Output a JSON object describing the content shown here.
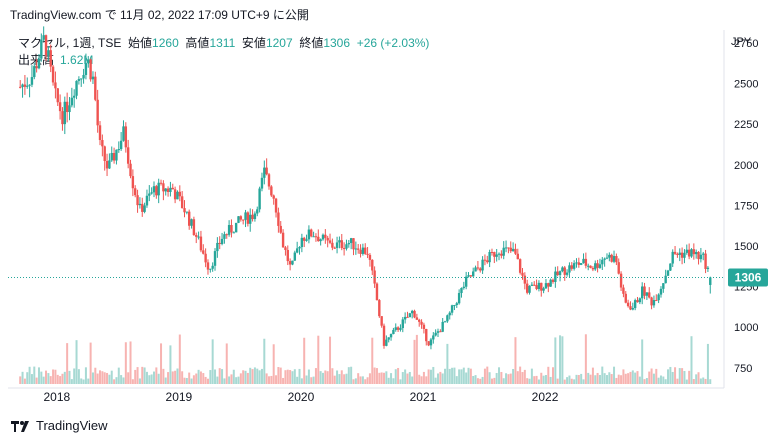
{
  "header": {
    "site": "TradingView.com",
    "byline": " で 11月 02, 2022 17:09 UTC+9 に公開"
  },
  "legend": {
    "symbol": "マクセル, 1週, TSE",
    "open_label": "始値",
    "open": "1260",
    "high_label": "高値",
    "high": "1311",
    "low_label": "安値",
    "low": "1207",
    "close_label": "終値",
    "close": "1306",
    "change": "+26 (+2.03%)",
    "volume_label": "出来高",
    "volume": "1.62M"
  },
  "currency": "JPY",
  "footer": {
    "brand": "TradingView"
  },
  "colors": {
    "up": "#26a69a",
    "down": "#ef5350",
    "upVol": "#a7d9d3",
    "downVol": "#f7b3b1",
    "priceLine": "#26a69a"
  },
  "chart_data": {
    "type": "candlestick",
    "x_axis_labels": [
      "2018",
      "2019",
      "2020",
      "2021",
      "2022"
    ],
    "y_ticks": [
      750,
      1000,
      1250,
      1500,
      1750,
      2000,
      2250,
      2500,
      2750
    ],
    "ylim": [
      650,
      2830
    ],
    "last_price": 1306,
    "series_path": [
      {
        "t": 2017.7,
        "p": 2480
      },
      {
        "t": 2017.8,
        "p": 2550
      },
      {
        "t": 2017.9,
        "p": 2780
      },
      {
        "t": 2017.98,
        "p": 2430
      },
      {
        "t": 2018.05,
        "p": 2300
      },
      {
        "t": 2018.15,
        "p": 2500
      },
      {
        "t": 2018.25,
        "p": 2650
      },
      {
        "t": 2018.3,
        "p": 2520
      },
      {
        "t": 2018.35,
        "p": 2120
      },
      {
        "t": 2018.42,
        "p": 1970
      },
      {
        "t": 2018.55,
        "p": 2200
      },
      {
        "t": 2018.62,
        "p": 1900
      },
      {
        "t": 2018.68,
        "p": 1720
      },
      {
        "t": 2018.8,
        "p": 1850
      },
      {
        "t": 2018.95,
        "p": 1850
      },
      {
        "t": 2019.05,
        "p": 1720
      },
      {
        "t": 2019.15,
        "p": 1550
      },
      {
        "t": 2019.25,
        "p": 1360
      },
      {
        "t": 2019.35,
        "p": 1550
      },
      {
        "t": 2019.5,
        "p": 1650
      },
      {
        "t": 2019.62,
        "p": 1700
      },
      {
        "t": 2019.7,
        "p": 1950
      },
      {
        "t": 2019.78,
        "p": 1800
      },
      {
        "t": 2019.85,
        "p": 1520
      },
      {
        "t": 2019.92,
        "p": 1350
      },
      {
        "t": 2020.0,
        "p": 1550
      },
      {
        "t": 2020.1,
        "p": 1580
      },
      {
        "t": 2020.25,
        "p": 1500
      },
      {
        "t": 2020.4,
        "p": 1520
      },
      {
        "t": 2020.55,
        "p": 1460
      },
      {
        "t": 2020.62,
        "p": 1180
      },
      {
        "t": 2020.68,
        "p": 900
      },
      {
        "t": 2020.8,
        "p": 1000
      },
      {
        "t": 2020.92,
        "p": 1100
      },
      {
        "t": 2021.05,
        "p": 900
      },
      {
        "t": 2021.2,
        "p": 1050
      },
      {
        "t": 2021.35,
        "p": 1280
      },
      {
        "t": 2021.5,
        "p": 1400
      },
      {
        "t": 2021.62,
        "p": 1480
      },
      {
        "t": 2021.75,
        "p": 1460
      },
      {
        "t": 2021.85,
        "p": 1230
      },
      {
        "t": 2022.0,
        "p": 1260
      },
      {
        "t": 2022.15,
        "p": 1350
      },
      {
        "t": 2022.3,
        "p": 1400
      },
      {
        "t": 2022.4,
        "p": 1370
      },
      {
        "t": 2022.5,
        "p": 1440
      },
      {
        "t": 2022.58,
        "p": 1420
      },
      {
        "t": 2022.65,
        "p": 1150
      },
      {
        "t": 2022.72,
        "p": 1120
      },
      {
        "t": 2022.8,
        "p": 1230
      },
      {
        "t": 2022.88,
        "p": 1150
      },
      {
        "t": 2022.95,
        "p": 1250
      },
      {
        "t": 2023.05,
        "p": 1450
      },
      {
        "t": 2023.2,
        "p": 1460
      },
      {
        "t": 2023.3,
        "p": 1420
      },
      {
        "t": 2023.36,
        "p": 1306
      }
    ]
  }
}
